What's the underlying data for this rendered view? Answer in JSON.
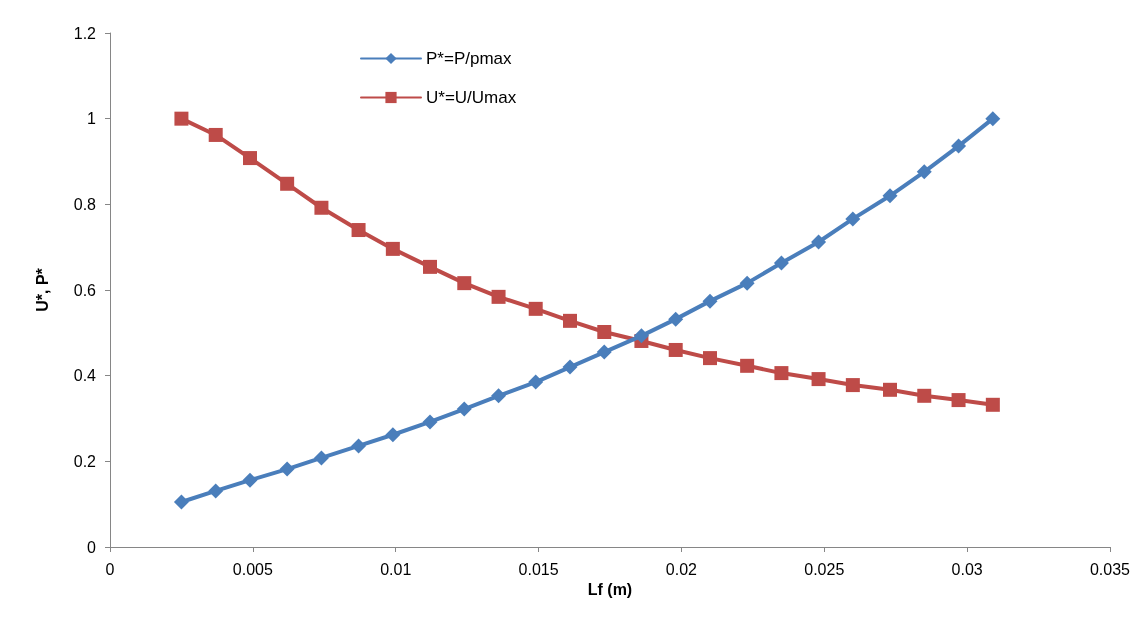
{
  "chart_data": {
    "type": "line",
    "xlabel": "Lf (m)",
    "ylabel": "U*, P*",
    "x": [
      0.0025,
      0.0037,
      0.0049,
      0.0062,
      0.0074,
      0.0087,
      0.0099,
      0.0112,
      0.0124,
      0.0136,
      0.0149,
      0.0161,
      0.0173,
      0.0186,
      0.0198,
      0.021,
      0.0223,
      0.0235,
      0.0248,
      0.026,
      0.0273,
      0.0285,
      0.0297,
      0.0309
    ],
    "series": [
      {
        "name": "P*=P/pmax",
        "color": "#4a7ebb",
        "marker": "diamond",
        "values": [
          0.105,
          0.131,
          0.156,
          0.182,
          0.208,
          0.236,
          0.262,
          0.292,
          0.322,
          0.353,
          0.385,
          0.42,
          0.455,
          0.493,
          0.532,
          0.574,
          0.616,
          0.663,
          0.712,
          0.766,
          0.82,
          0.876,
          0.936,
          1.0
        ]
      },
      {
        "name": "U*=U/Umax",
        "color": "#be4b48",
        "marker": "square",
        "values": [
          1.0,
          0.962,
          0.908,
          0.848,
          0.792,
          0.74,
          0.696,
          0.654,
          0.616,
          0.584,
          0.556,
          0.528,
          0.502,
          0.481,
          0.46,
          0.441,
          0.423,
          0.406,
          0.392,
          0.378,
          0.367,
          0.353,
          0.343,
          0.332
        ]
      }
    ],
    "xlim": [
      0,
      0.035
    ],
    "xticks": [
      0,
      0.005,
      0.01,
      0.015,
      0.02,
      0.025,
      0.03,
      0.035
    ],
    "ylim": [
      0,
      1.2
    ],
    "yticks": [
      0,
      0.2,
      0.4,
      0.6,
      0.8,
      1,
      1.2
    ],
    "grid": false,
    "legend": "top",
    "line_style": "solid"
  }
}
